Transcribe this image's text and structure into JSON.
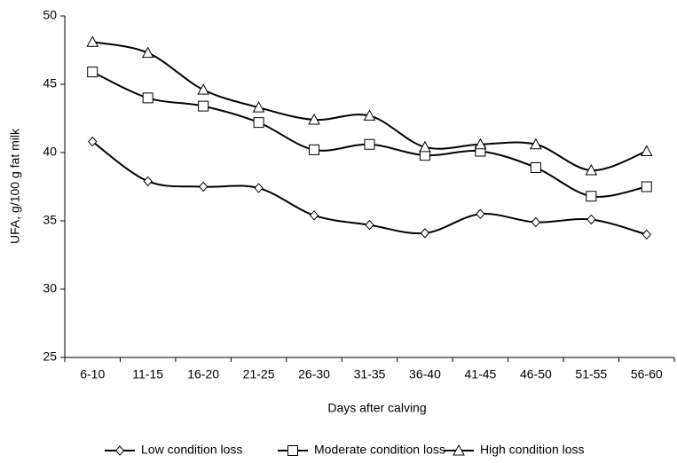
{
  "chart_data": {
    "type": "line",
    "x_label": "Days after calving",
    "y_label": "UFA, g/100 g fat milk",
    "categories": [
      "6-10",
      "11-15",
      "16-20",
      "21-25",
      "26-30",
      "31-35",
      "36-40",
      "41-45",
      "46-50",
      "51-55",
      "56-60"
    ],
    "series": [
      {
        "name": "Low condition loss",
        "color": "#000000",
        "marker": "diamond",
        "values": [
          40.8,
          37.9,
          37.5,
          37.4,
          35.4,
          34.7,
          34.1,
          35.5,
          34.9,
          35.1,
          34.0
        ]
      },
      {
        "name": "Moderate condition loss",
        "color": "#000000",
        "marker": "square",
        "values": [
          45.9,
          44.0,
          43.4,
          42.2,
          40.2,
          40.6,
          39.8,
          40.1,
          38.9,
          36.8,
          37.5
        ]
      },
      {
        "name": "High condition loss",
        "color": "#000000",
        "marker": "triangle",
        "values": [
          48.1,
          47.3,
          44.6,
          43.3,
          42.4,
          42.7,
          40.4,
          40.6,
          40.6,
          38.7,
          40.1
        ]
      }
    ],
    "ylim": [
      25,
      50
    ],
    "yticks": [
      25,
      30,
      35,
      40,
      45,
      50
    ],
    "grid": false,
    "smooth": true,
    "legend": "bottom"
  }
}
